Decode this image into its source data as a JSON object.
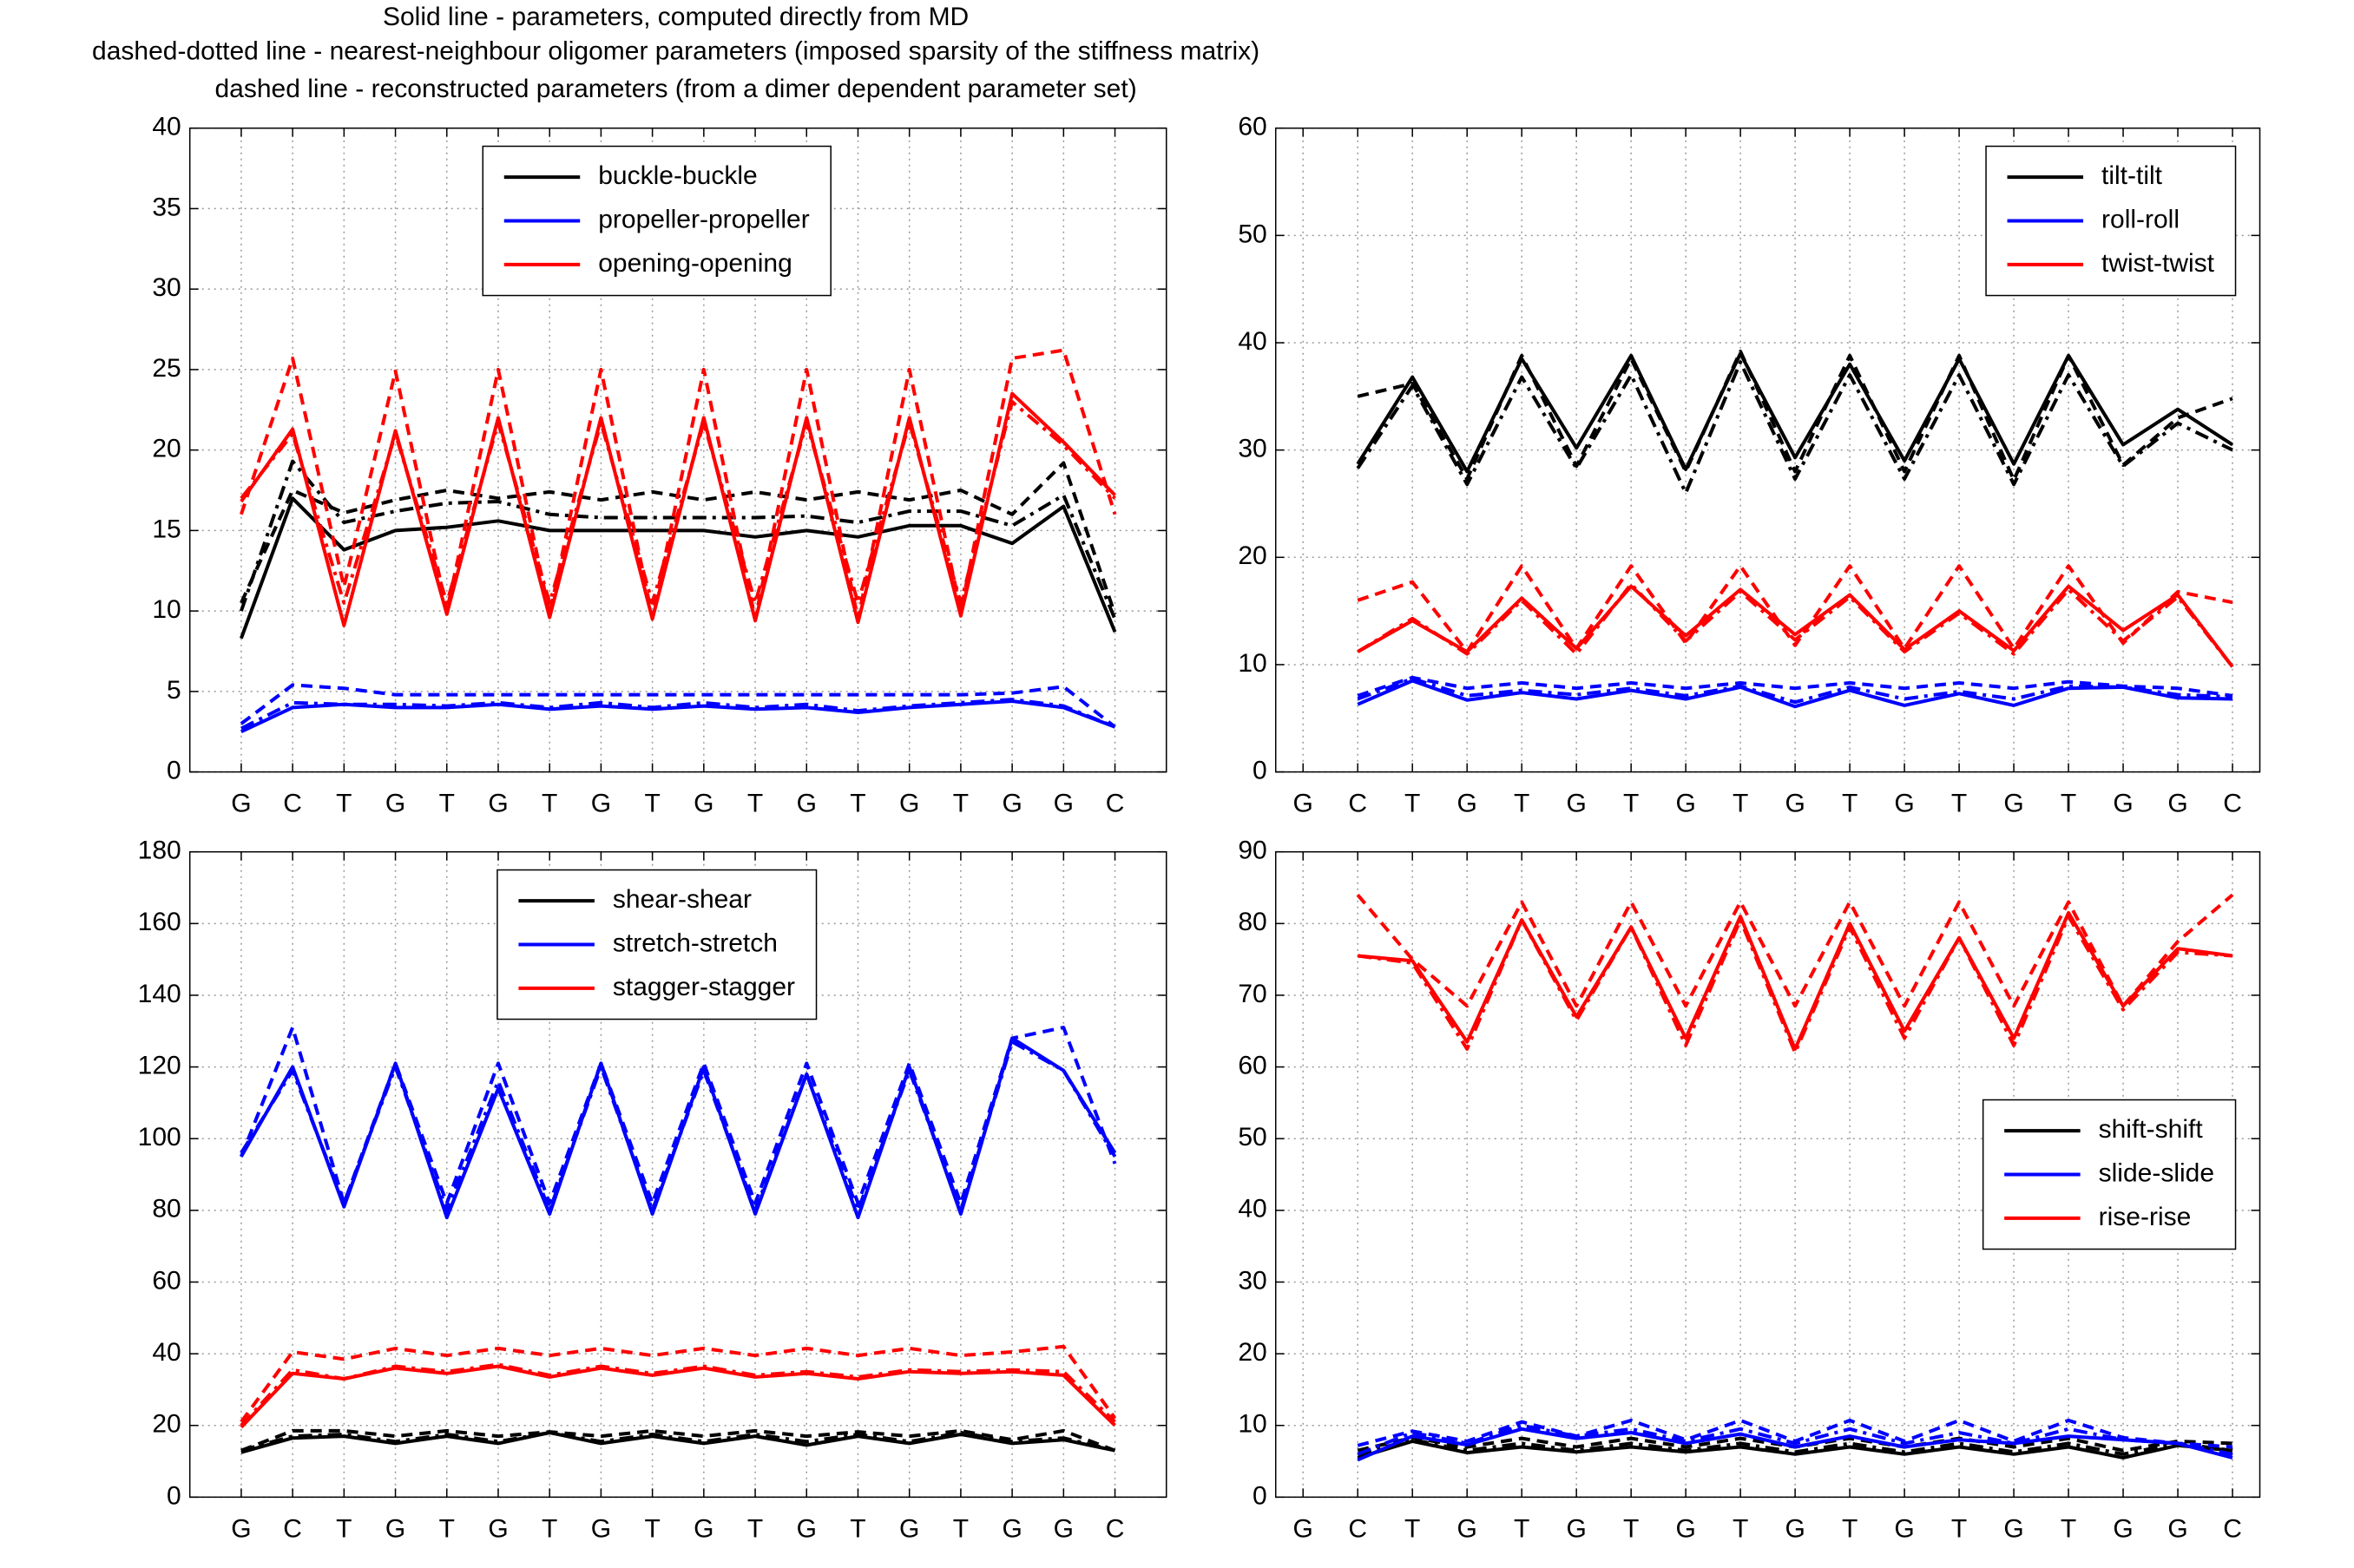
{
  "title": [
    "Solid line - parameters, computed directly from MD",
    "dashed-dotted line - nearest-neighbour oligomer parameters (imposed sparsity of the stiffness matrix)",
    "dashed line - reconstructed parameters (from a dimer dependent parameter set)"
  ],
  "chart_data": [
    {
      "type": "line",
      "categories": [
        "G",
        "C",
        "T",
        "G",
        "T",
        "G",
        "T",
        "G",
        "T",
        "G",
        "T",
        "G",
        "T",
        "G",
        "T",
        "G",
        "G",
        "C"
      ],
      "xlim": [
        0,
        19
      ],
      "ylim": [
        0,
        40
      ],
      "yticks": [
        0,
        5,
        10,
        15,
        20,
        25,
        30,
        35,
        40
      ],
      "grid": true,
      "legend": "upper center",
      "series": [
        {
          "name": "buckle-buckle",
          "color": "#000000",
          "values": [
            8.3,
            17,
            13.8,
            15,
            15.2,
            15.6,
            15,
            15,
            15,
            15,
            14.6,
            15,
            14.6,
            15.3,
            15.3,
            14.2,
            16.5,
            8.7
          ],
          "dashdot_values": [
            10,
            19.3,
            15.5,
            16.2,
            16.7,
            16.8,
            16,
            15.8,
            15.8,
            15.8,
            15.8,
            15.9,
            15.5,
            16.2,
            16.2,
            15.3,
            17.2,
            9.5
          ],
          "dashed_values": [
            10.5,
            17.5,
            16.1,
            16.9,
            17.5,
            17,
            17.4,
            16.9,
            17.4,
            16.9,
            17.4,
            16.9,
            17.4,
            16.9,
            17.5,
            16,
            19.2,
            9.8
          ]
        },
        {
          "name": "propeller-propeller",
          "color": "#0000ff",
          "values": [
            2.5,
            4,
            4.2,
            4,
            4,
            4.2,
            3.9,
            4.1,
            3.9,
            4.1,
            3.9,
            4,
            3.7,
            4,
            4.2,
            4.4,
            4,
            2.8
          ],
          "dashdot_values": [
            2.7,
            4.3,
            4.2,
            4.2,
            4.1,
            4.3,
            4,
            4.3,
            4,
            4.3,
            4,
            4.2,
            3.8,
            4.1,
            4.3,
            4.5,
            4.1,
            2.8
          ],
          "dashed_values": [
            3,
            5.4,
            5.2,
            4.8,
            4.8,
            4.8,
            4.8,
            4.8,
            4.8,
            4.8,
            4.8,
            4.8,
            4.8,
            4.8,
            4.8,
            4.9,
            5.3,
            2.8
          ]
        },
        {
          "name": "opening-opening",
          "color": "#ff0000",
          "values": [
            16.8,
            21.3,
            9.1,
            21.2,
            9.8,
            22,
            9.6,
            22,
            9.5,
            22,
            9.4,
            22,
            9.3,
            22,
            9.7,
            23.5,
            20.5,
            17.2
          ],
          "dashdot_values": [
            17,
            21,
            10.5,
            21,
            10.5,
            21.7,
            10.5,
            21.7,
            10.5,
            21.7,
            10.5,
            21.7,
            10.5,
            21.7,
            10.5,
            23,
            20.3,
            17
          ],
          "dashed_values": [
            16,
            25.7,
            11.5,
            24.9,
            10,
            25,
            9.8,
            25,
            9.6,
            25,
            9.5,
            25,
            9.5,
            25,
            10,
            25.7,
            26.2,
            16
          ]
        }
      ]
    },
    {
      "type": "line",
      "categories": [
        "G",
        "C",
        "T",
        "G",
        "T",
        "G",
        "T",
        "G",
        "T",
        "G",
        "T",
        "G",
        "T",
        "G",
        "T",
        "G",
        "G",
        "C"
      ],
      "xlim": [
        0.5,
        18.5
      ],
      "ylim": [
        0,
        60
      ],
      "yticks": [
        0,
        10,
        20,
        30,
        40,
        50,
        60
      ],
      "grid": true,
      "legend": "upper right",
      "series": [
        {
          "name": "tilt-tilt",
          "color": "#000000",
          "values": [
            null,
            28.7,
            36.8,
            28,
            38.5,
            30.2,
            38.8,
            28.2,
            39,
            29.3,
            38,
            29,
            38.5,
            28.7,
            38.8,
            30.5,
            33.8,
            30.5
          ],
          "dashdot_values": [
            null,
            28.3,
            36,
            26.8,
            36.8,
            28.3,
            37,
            26,
            38.2,
            27.3,
            37,
            27.3,
            37,
            26.8,
            37,
            28.5,
            32.5,
            30
          ],
          "dashed_values": [
            null,
            35,
            36.2,
            27.3,
            38.8,
            28.5,
            38.5,
            28,
            39.2,
            28,
            38.8,
            28,
            38.8,
            27.2,
            38.8,
            28.6,
            33,
            34.8
          ]
        },
        {
          "name": "roll-roll",
          "color": "#0000ff",
          "values": [
            null,
            6.3,
            8.5,
            6.7,
            7.4,
            6.8,
            7.6,
            6.8,
            7.9,
            6.1,
            7.6,
            6.2,
            7.3,
            6.2,
            7.8,
            7.9,
            6.9,
            6.8
          ],
          "dashdot_values": [
            null,
            6.8,
            8.7,
            7.1,
            7.6,
            7.2,
            7.8,
            7.1,
            8,
            6.5,
            7.9,
            6.8,
            7.5,
            6.8,
            8,
            7.9,
            7.2,
            7
          ],
          "dashed_values": [
            null,
            7.1,
            8.8,
            7.8,
            8.3,
            7.8,
            8.3,
            7.8,
            8.3,
            7.8,
            8.3,
            7.8,
            8.3,
            7.8,
            8.4,
            8,
            7.8,
            7.1
          ]
        },
        {
          "name": "twist-twist",
          "color": "#ff0000",
          "values": [
            null,
            11.2,
            14.1,
            11.2,
            16.2,
            11.5,
            17.3,
            12.7,
            17,
            12.8,
            16.5,
            11.4,
            15,
            11.3,
            17.3,
            13.2,
            16.5,
            9.8
          ],
          "dashdot_values": [
            null,
            11.2,
            14.3,
            11,
            16,
            11,
            17.5,
            12.2,
            16.8,
            12.3,
            16.3,
            11.2,
            14.8,
            11,
            17,
            12.2,
            16.3,
            9.8
          ],
          "dashed_values": [
            null,
            16,
            17.7,
            11.2,
            19.2,
            11.5,
            19.2,
            12,
            19.2,
            11.8,
            19.2,
            11.5,
            19.2,
            11.5,
            19.2,
            12,
            16.8,
            15.8
          ]
        }
      ]
    },
    {
      "type": "line",
      "categories": [
        "G",
        "C",
        "T",
        "G",
        "T",
        "G",
        "T",
        "G",
        "T",
        "G",
        "T",
        "G",
        "T",
        "G",
        "T",
        "G",
        "G",
        "C"
      ],
      "xlim": [
        0,
        19
      ],
      "ylim": [
        0,
        180
      ],
      "yticks": [
        0,
        20,
        40,
        60,
        80,
        100,
        120,
        140,
        160,
        180
      ],
      "grid": true,
      "legend": "upper center",
      "series": [
        {
          "name": "shear-shear",
          "color": "#000000",
          "values": [
            12.5,
            16.5,
            17,
            15,
            17,
            15,
            18,
            15,
            17,
            15,
            17,
            14.5,
            17,
            15,
            17.5,
            15,
            16,
            13
          ],
          "dashdot_values": [
            13,
            17,
            17.5,
            15.5,
            17.5,
            15.5,
            18,
            15.5,
            17.5,
            15.5,
            17.5,
            15.5,
            17.5,
            15.5,
            18,
            15.5,
            16.5,
            13
          ],
          "dashed_values": [
            13,
            18.5,
            18.5,
            17,
            18.5,
            17,
            18.2,
            17,
            18.5,
            17,
            18.5,
            17,
            18.2,
            17,
            18.5,
            16,
            18.5,
            13
          ]
        },
        {
          "name": "stretch-stretch",
          "color": "#0000ff",
          "values": [
            95,
            120,
            81,
            121,
            78,
            114,
            79,
            121,
            79,
            120,
            79,
            118,
            78,
            120,
            79,
            128,
            119,
            96
          ],
          "dashdot_values": [
            96,
            119,
            82,
            120,
            80,
            116,
            80,
            120,
            80,
            119,
            80,
            118,
            80,
            119,
            80,
            127,
            119,
            95
          ],
          "dashed_values": [
            95,
            131,
            82,
            121,
            82,
            121,
            82,
            121,
            82,
            121,
            82,
            121,
            82,
            121,
            82,
            128,
            131,
            93
          ]
        },
        {
          "name": "stagger-stagger",
          "color": "#ff0000",
          "values": [
            19.5,
            34.5,
            33,
            36,
            34.5,
            36.5,
            33.5,
            36,
            34,
            36,
            33.5,
            34.5,
            33,
            35,
            34.5,
            35,
            34,
            20
          ],
          "dashdot_values": [
            20,
            35.5,
            33,
            36.5,
            35,
            37,
            34,
            36.5,
            34.5,
            36.5,
            34,
            35,
            33.5,
            35.5,
            35,
            35.5,
            35,
            21
          ],
          "dashed_values": [
            21,
            40.5,
            38.5,
            41.5,
            39.5,
            41.5,
            39.5,
            41.5,
            39.5,
            41.5,
            39.5,
            41.5,
            39.5,
            41.5,
            39.5,
            40.5,
            42,
            22
          ]
        }
      ]
    },
    {
      "type": "line",
      "categories": [
        "G",
        "C",
        "T",
        "G",
        "T",
        "G",
        "T",
        "G",
        "T",
        "G",
        "T",
        "G",
        "T",
        "G",
        "T",
        "G",
        "G",
        "C"
      ],
      "xlim": [
        0.5,
        18.5
      ],
      "ylim": [
        0,
        90
      ],
      "yticks": [
        0,
        10,
        20,
        30,
        40,
        50,
        60,
        70,
        80,
        90
      ],
      "grid": true,
      "legend": "center right",
      "series": [
        {
          "name": "shift-shift",
          "color": "#000000",
          "values": [
            null,
            5.5,
            7.8,
            6.2,
            7,
            6.3,
            7,
            6.3,
            7,
            6,
            7,
            6,
            7,
            6,
            7,
            5.5,
            7.2,
            6.5
          ],
          "dashdot_values": [
            null,
            6,
            8,
            6.5,
            7.5,
            6.5,
            7.5,
            6.5,
            7.5,
            6.3,
            7.5,
            6.3,
            7.5,
            6.3,
            7.5,
            6,
            7.5,
            6.5
          ],
          "dashed_values": [
            null,
            6.5,
            8.3,
            7,
            8.2,
            7,
            8.2,
            7,
            8.2,
            7,
            8.2,
            7,
            8.2,
            7,
            8.2,
            6.5,
            7.8,
            7.5
          ]
        },
        {
          "name": "slide-slide",
          "color": "#0000ff",
          "values": [
            null,
            5.2,
            8.5,
            7.3,
            9.5,
            8.2,
            9,
            7.5,
            8.8,
            7,
            8.5,
            7,
            8,
            7.5,
            8.5,
            8,
            7.5,
            5.5
          ],
          "dashdot_values": [
            null,
            6,
            9,
            7.5,
            10,
            8.5,
            9.5,
            7.8,
            9.5,
            7.5,
            9.5,
            7.5,
            9,
            7.5,
            9.5,
            8,
            7.5,
            6
          ],
          "dashed_values": [
            null,
            7.2,
            9.2,
            7.8,
            10.5,
            8.5,
            10.7,
            8,
            10.7,
            7.8,
            10.7,
            7.8,
            10.7,
            7.8,
            10.7,
            8.3,
            7.5,
            7
          ]
        },
        {
          "name": "rise-rise",
          "color": "#ff0000",
          "values": [
            null,
            75.5,
            74.8,
            63.5,
            80.5,
            67,
            79.5,
            64,
            81,
            62.5,
            80,
            65,
            78,
            64,
            81.5,
            68.5,
            76.5,
            75.5
          ],
          "dashdot_values": [
            null,
            75.5,
            74.5,
            62.5,
            80.5,
            66.5,
            79.5,
            63,
            80.5,
            62,
            79.5,
            64,
            78,
            63,
            81,
            68,
            76,
            75.5
          ],
          "dashed_values": [
            null,
            84,
            75,
            68.5,
            83,
            68.5,
            83,
            68.5,
            83,
            68.5,
            83,
            68.5,
            83,
            68.5,
            83,
            68.5,
            77.5,
            84
          ]
        }
      ]
    }
  ]
}
